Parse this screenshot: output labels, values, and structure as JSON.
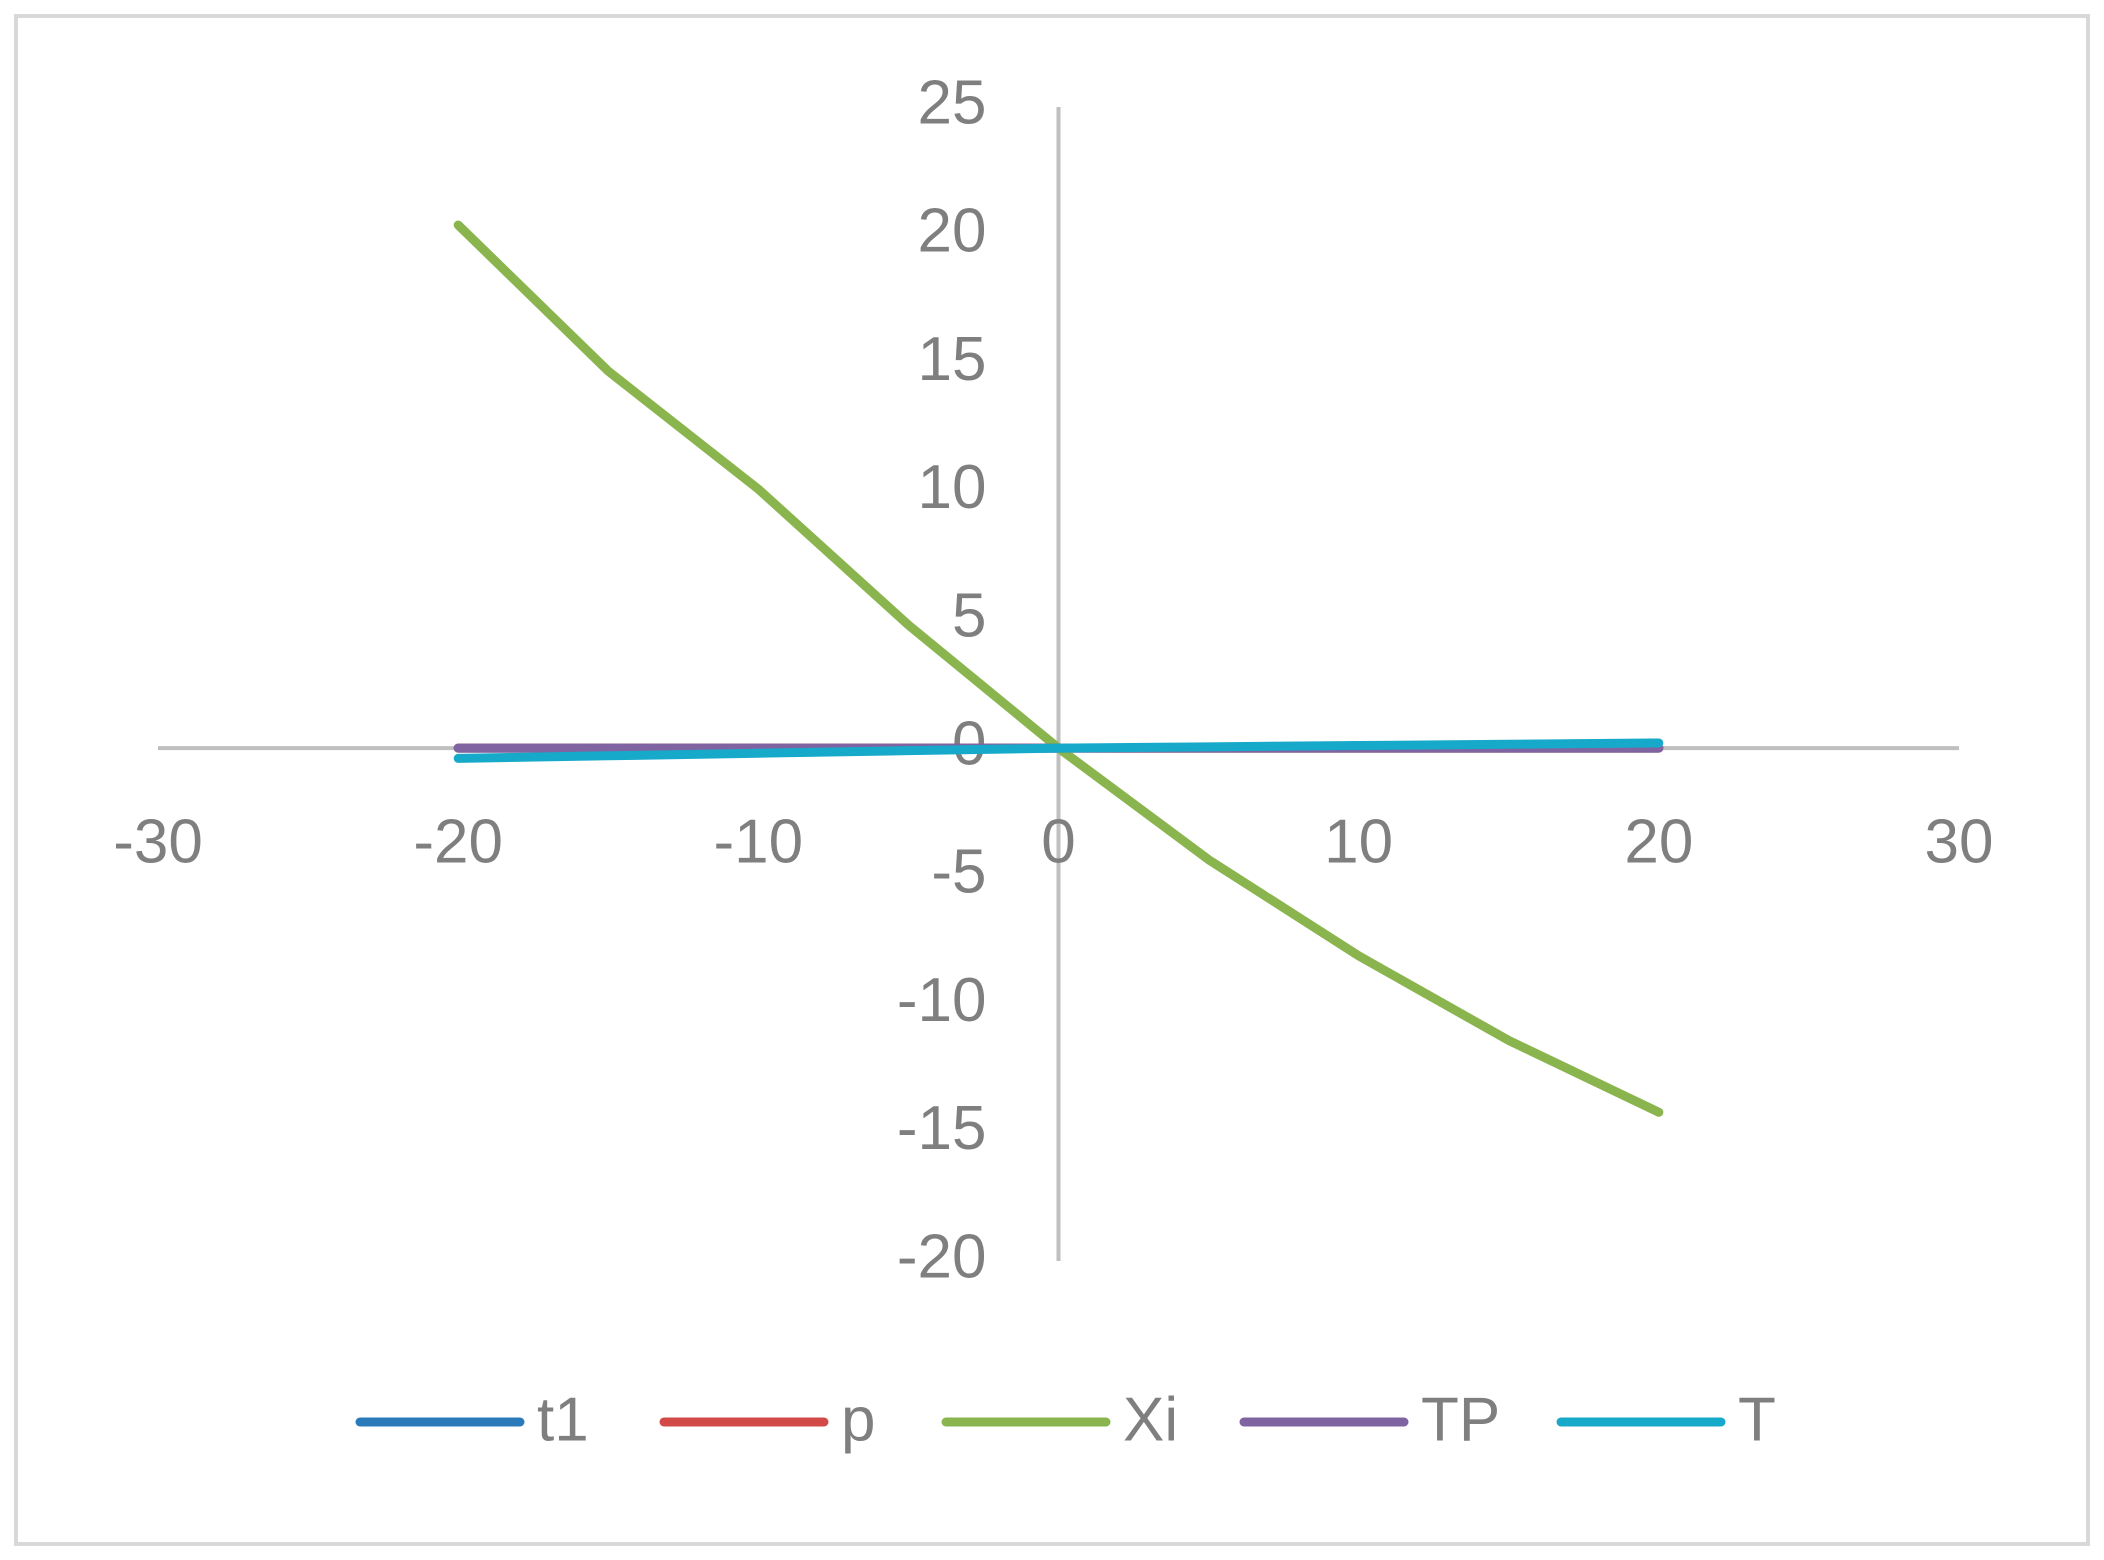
{
  "chart_data": {
    "type": "scatter",
    "lines": true,
    "grid": false,
    "legend": "bottom",
    "x": [
      -20,
      -15,
      -10,
      -5,
      0,
      5,
      10,
      15,
      20
    ],
    "xlim": [
      -30,
      30
    ],
    "xticks": [
      -30,
      -20,
      -10,
      0,
      10,
      20,
      30
    ],
    "ylim": [
      -20,
      25
    ],
    "yticks": [
      -20,
      -15,
      -10,
      -5,
      0,
      5,
      10,
      15,
      20,
      25
    ],
    "series": [
      {
        "name": "t1",
        "color": "#2a7ab9",
        "values": [
          0,
          0,
          0,
          0,
          0,
          0,
          0,
          0,
          0
        ]
      },
      {
        "name": "p",
        "color": "#d24a48",
        "values": [
          0,
          0,
          0,
          0,
          0,
          0,
          0,
          0,
          0
        ]
      },
      {
        "name": "Xi",
        "color": "#8ab54e",
        "values": [
          20.4,
          14.7,
          10.1,
          4.8,
          0,
          -4.35,
          -8.1,
          -11.4,
          -14.2
        ]
      },
      {
        "name": "TP",
        "color": "#8064a2",
        "values": [
          0,
          0,
          0,
          0,
          0,
          0,
          0,
          0,
          0
        ]
      },
      {
        "name": "T",
        "color": "#17a9c9",
        "values": [
          -0.4,
          -0.3,
          -0.2,
          -0.1,
          0,
          0.05,
          0.1,
          0.15,
          0.2
        ]
      }
    ]
  }
}
